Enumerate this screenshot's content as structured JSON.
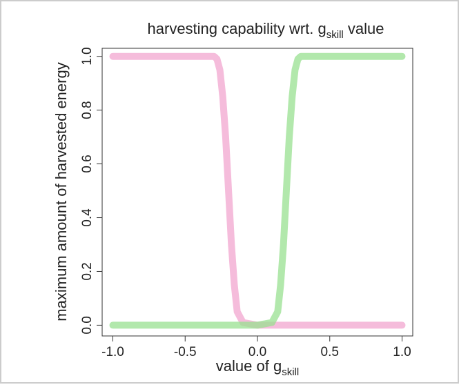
{
  "chart_data": {
    "type": "line",
    "title": {
      "main": "harvesting capability wrt. g",
      "sub": "skill",
      "tail": " value"
    },
    "xlabel": {
      "main": "value of g",
      "sub": "skill"
    },
    "ylabel": "maximum amount of harvested energy",
    "x": [
      -1,
      -0.5,
      -0.3,
      -0.28,
      -0.26,
      -0.24,
      -0.22,
      -0.2,
      -0.18,
      -0.16,
      -0.14,
      -0.1,
      0,
      0.1,
      0.14,
      0.16,
      0.18,
      0.2,
      0.22,
      0.24,
      0.26,
      0.28,
      0.3,
      0.5,
      1
    ],
    "series": [
      {
        "color": "#f2a6cf",
        "values": [
          1,
          1,
          1,
          0.99,
          0.95,
          0.85,
          0.7,
          0.5,
          0.3,
          0.15,
          0.05,
          0.01,
          0,
          0,
          0,
          0,
          0,
          0,
          0,
          0,
          0,
          0,
          0,
          0,
          0
        ]
      },
      {
        "color": "#98e090",
        "values": [
          0,
          0,
          0,
          0,
          0,
          0,
          0,
          0,
          0,
          0,
          0,
          0,
          0,
          0.01,
          0.05,
          0.15,
          0.3,
          0.5,
          0.7,
          0.85,
          0.95,
          0.99,
          1,
          1,
          1
        ]
      }
    ],
    "xlim": [
      -1.074,
      1.074
    ],
    "ylim": [
      -0.04,
      1.03
    ],
    "xticks": [
      {
        "value": -1,
        "label": "-1.0"
      },
      {
        "value": -0.5,
        "label": "-0.5"
      },
      {
        "value": 0,
        "label": "0.0"
      },
      {
        "value": 0.5,
        "label": "0.5"
      },
      {
        "value": 1,
        "label": "1.0"
      }
    ],
    "yticks": [
      {
        "value": 0,
        "label": "0.0"
      },
      {
        "value": 0.2,
        "label": "0.2"
      },
      {
        "value": 0.4,
        "label": "0.4"
      },
      {
        "value": 0.6,
        "label": "0.6"
      },
      {
        "value": 0.8,
        "label": "0.8"
      },
      {
        "value": 1,
        "label": "1.0"
      }
    ]
  }
}
